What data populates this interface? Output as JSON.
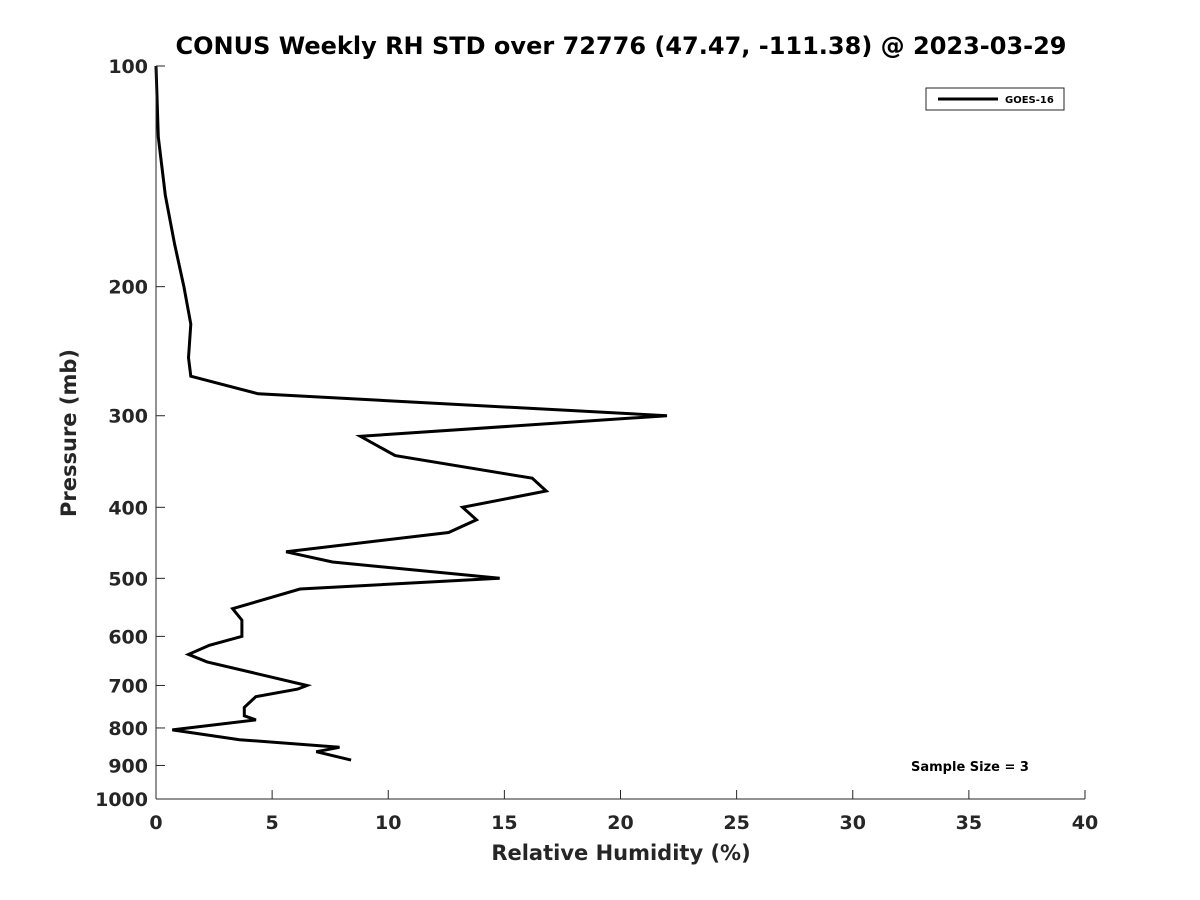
{
  "chart_data": {
    "type": "line",
    "title": "CONUS Weekly RH STD over 72776 (47.47, -111.38) @ 2023-03-29",
    "xlabel": "Relative Humidity (%)",
    "ylabel": "Pressure (mb)",
    "xlim": [
      0,
      40
    ],
    "ylim": [
      100,
      1000
    ],
    "yscale": "log",
    "y_reversed": true,
    "grid": false,
    "legend_position": "top-right",
    "x_ticks": [
      {
        "value": 0,
        "label": "0"
      },
      {
        "value": 5,
        "label": "5"
      },
      {
        "value": 10,
        "label": "10"
      },
      {
        "value": 15,
        "label": "15"
      },
      {
        "value": 20,
        "label": "20"
      },
      {
        "value": 25,
        "label": "25"
      },
      {
        "value": 30,
        "label": "30"
      },
      {
        "value": 35,
        "label": "35"
      },
      {
        "value": 40,
        "label": "40"
      }
    ],
    "y_ticks": [
      {
        "value": 100,
        "label": "100"
      },
      {
        "value": 200,
        "label": "200"
      },
      {
        "value": 300,
        "label": "300"
      },
      {
        "value": 400,
        "label": "400"
      },
      {
        "value": 500,
        "label": "500"
      },
      {
        "value": 600,
        "label": "600"
      },
      {
        "value": 700,
        "label": "700"
      },
      {
        "value": 800,
        "label": "800"
      },
      {
        "value": 900,
        "label": "900"
      },
      {
        "value": 1000,
        "label": "1000"
      }
    ],
    "series": [
      {
        "name": "GOES-16",
        "color": "#000000",
        "points": [
          {
            "x": 0.0,
            "p": 100
          },
          {
            "x": 0.1,
            "p": 125
          },
          {
            "x": 0.4,
            "p": 150
          },
          {
            "x": 0.8,
            "p": 175
          },
          {
            "x": 1.2,
            "p": 200
          },
          {
            "x": 1.5,
            "p": 225
          },
          {
            "x": 1.4,
            "p": 250
          },
          {
            "x": 1.5,
            "p": 265
          },
          {
            "x": 4.4,
            "p": 280
          },
          {
            "x": 22.0,
            "p": 300
          },
          {
            "x": 8.8,
            "p": 320
          },
          {
            "x": 10.3,
            "p": 340
          },
          {
            "x": 16.2,
            "p": 365
          },
          {
            "x": 16.8,
            "p": 380
          },
          {
            "x": 13.2,
            "p": 400
          },
          {
            "x": 13.8,
            "p": 416
          },
          {
            "x": 12.6,
            "p": 433
          },
          {
            "x": 5.6,
            "p": 460
          },
          {
            "x": 7.6,
            "p": 475
          },
          {
            "x": 14.8,
            "p": 500
          },
          {
            "x": 6.2,
            "p": 517
          },
          {
            "x": 3.3,
            "p": 550
          },
          {
            "x": 3.7,
            "p": 570
          },
          {
            "x": 3.7,
            "p": 600
          },
          {
            "x": 2.3,
            "p": 617
          },
          {
            "x": 1.4,
            "p": 635
          },
          {
            "x": 2.2,
            "p": 650
          },
          {
            "x": 6.5,
            "p": 700
          },
          {
            "x": 6.1,
            "p": 708
          },
          {
            "x": 4.3,
            "p": 725
          },
          {
            "x": 3.8,
            "p": 750
          },
          {
            "x": 3.8,
            "p": 770
          },
          {
            "x": 4.3,
            "p": 780
          },
          {
            "x": 0.7,
            "p": 805
          },
          {
            "x": 3.6,
            "p": 830
          },
          {
            "x": 7.9,
            "p": 850
          },
          {
            "x": 6.9,
            "p": 862
          },
          {
            "x": 8.4,
            "p": 885
          }
        ]
      }
    ],
    "annotation": "Sample Size = 3"
  }
}
